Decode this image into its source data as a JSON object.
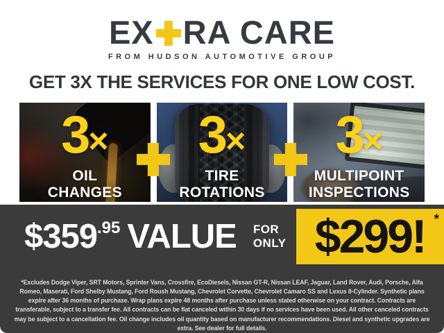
{
  "brand": {
    "name_prefix": "EX",
    "name_suffix": "RA CARE",
    "tagline": "FROM HUDSON AUTOMOTIVE GROUP"
  },
  "headline": "GET 3X THE SERVICES FOR ONE LOW COST.",
  "services": [
    {
      "multiplier": "3",
      "times": "×",
      "label_line1": "OIL",
      "label_line2": "CHANGES",
      "photo_alt": "motor oil being poured from a bottle"
    },
    {
      "multiplier": "3",
      "times": "×",
      "label_line1": "TIRE",
      "label_line2": "ROTATIONS",
      "photo_alt": "technician holding a tire"
    },
    {
      "multiplier": "3",
      "times": "×",
      "label_line1": "MULTIPOINT",
      "label_line2": "INSPECTIONS",
      "photo_alt": "technician using diagnostic laptop"
    }
  ],
  "offer": {
    "value_price_main": "$359",
    "value_price_cents": ".95",
    "value_label": "VALUE",
    "for_word": "FOR",
    "only_word": "ONLY",
    "sale_price": "$299!",
    "sale_asterisk": "*"
  },
  "disclaimer": "*Excludes Dodge Viper, SRT Motors, Sprinter Vans, Crossfire, EcoDiesels, Nissan GT-R, Nissan LEAF, Jaguar, Land Rover, Audi, Porsche, Alfa Romeo, Maserati, Ford Shelby Mustang, Ford Roush Mustang, Chevrolet Corvette, Chevrolet Camaro SS and Lexus 8-Cylinder. Synthetic plans expire after 36 months of purchase. Wrap plans expire 48 months after purchase unless stated otherwise on your contract. Contracts are transferable, subject to a transfer fee. All contracts can be flat canceled within 30 days if no services have been used. All other canceled contracts may be subject to a cancellation fee. Oil change includes oil quantity based on manufacturer recommendations. Diesel and synthetic upgrades are extra. See dealer for full details.",
  "colors": {
    "accent_yellow": "#F2C716",
    "multiplier_yellow": "#FFD21A",
    "band_gray": "#3B3B3B",
    "ink": "#363B41"
  }
}
